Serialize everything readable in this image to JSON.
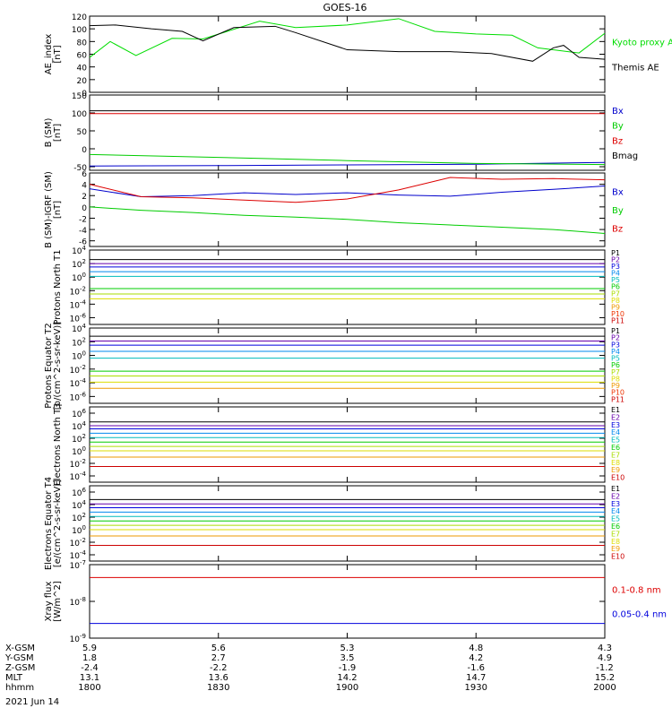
{
  "title": "GOES-16",
  "date_label": "2021 Jun 14",
  "x_axis": {
    "ticks": [
      1800,
      1830,
      1900,
      1930,
      2000
    ],
    "rows": [
      {
        "label": "X-GSM",
        "values": [
          "5.9",
          "5.6",
          "5.3",
          "4.8",
          "4.3"
        ]
      },
      {
        "label": "Y-GSM",
        "values": [
          "1.8",
          "2.7",
          "3.5",
          "4.2",
          "4.9"
        ]
      },
      {
        "label": "Z-GSM",
        "values": [
          "-2.4",
          "-2.2",
          "-1.9",
          "-1.6",
          "-1.2"
        ]
      },
      {
        "label": "MLT",
        "values": [
          "13.1",
          "13.6",
          "14.2",
          "14.7",
          "15.2"
        ]
      },
      {
        "label": "hhmm",
        "values": [
          "1800",
          "1830",
          "1900",
          "1930",
          "2000"
        ]
      }
    ]
  },
  "chart_data": [
    {
      "type": "line",
      "ylabel": "AE_index [nT]",
      "ylim": [
        0,
        120
      ],
      "yticks": [
        "120",
        "100",
        "80",
        "60",
        "40",
        "20",
        "0"
      ],
      "series": [
        {
          "name": "Kyoto proxy AE",
          "color": "#00dd00",
          "x": [
            0,
            4,
            9,
            16,
            22,
            33,
            40,
            50,
            60,
            67,
            75,
            82,
            87,
            95,
            100
          ],
          "y": [
            55,
            80,
            58,
            85,
            84,
            112,
            102,
            106,
            116,
            96,
            92,
            90,
            70,
            62,
            93
          ]
        },
        {
          "name": "Themis AE",
          "color": "#000000",
          "x": [
            0,
            5,
            12,
            18,
            22,
            28,
            36,
            40,
            50,
            60,
            70,
            78,
            86,
            90,
            92,
            95,
            100
          ],
          "y": [
            105,
            106,
            100,
            96,
            81,
            102,
            104,
            94,
            67,
            64,
            64,
            61,
            49,
            70,
            74,
            55,
            52
          ]
        }
      ],
      "legend": [
        "Kyoto proxy AE",
        "Themis AE"
      ]
    },
    {
      "type": "line",
      "ylabel": "B (SM) [nT]",
      "ylim": [
        -60,
        150
      ],
      "yticks": [
        "150",
        "100",
        "50",
        "0",
        "-50"
      ],
      "series": [
        {
          "name": "Bx",
          "color": "#0000cc",
          "x": [
            0,
            25,
            50,
            75,
            100
          ],
          "y": [
            -48,
            -47,
            -45,
            -43,
            -38
          ]
        },
        {
          "name": "By",
          "color": "#00cc00",
          "x": [
            0,
            25,
            50,
            75,
            100
          ],
          "y": [
            -16,
            -24,
            -33,
            -41,
            -44
          ]
        },
        {
          "name": "Bz",
          "color": "#dd0000",
          "x": [
            0,
            50,
            100
          ],
          "y": [
            98,
            98,
            98
          ]
        },
        {
          "name": "Bmag",
          "color": "#000000",
          "x": [
            0,
            50,
            100
          ],
          "y": [
            106,
            106,
            106
          ]
        }
      ],
      "legend": [
        "Bx",
        "By",
        "Bz",
        "Bmag"
      ]
    },
    {
      "type": "line",
      "ylabel": "B (SM)-IGRF (SM) [nT]",
      "ylim": [
        -7,
        6
      ],
      "yticks": [
        "6",
        "4",
        "2",
        "0",
        "-2",
        "-4",
        "-6"
      ],
      "series": [
        {
          "name": "Bx",
          "color": "#0000cc",
          "x": [
            0,
            10,
            20,
            30,
            40,
            50,
            60,
            70,
            80,
            90,
            100
          ],
          "y": [
            3.2,
            1.8,
            2.0,
            2.5,
            2.2,
            2.5,
            2.1,
            1.9,
            2.6,
            3.1,
            3.7
          ]
        },
        {
          "name": "By",
          "color": "#00cc00",
          "x": [
            0,
            10,
            20,
            30,
            40,
            50,
            60,
            70,
            80,
            90,
            100
          ],
          "y": [
            0,
            -0.6,
            -1.0,
            -1.5,
            -1.8,
            -2.2,
            -2.8,
            -3.2,
            -3.6,
            -4.0,
            -4.7
          ]
        },
        {
          "name": "Bz",
          "color": "#dd0000",
          "x": [
            0,
            10,
            20,
            30,
            40,
            50,
            60,
            70,
            80,
            90,
            100
          ],
          "y": [
            4.0,
            1.8,
            1.6,
            1.2,
            0.8,
            1.4,
            3.0,
            5.2,
            4.9,
            5.0,
            4.8
          ]
        }
      ],
      "legend": [
        "Bx",
        "By",
        "Bz"
      ]
    },
    {
      "type": "line",
      "ylabel": "Protons North T1",
      "scale": "log",
      "yticks": [
        "10^4",
        "10^2",
        "10^0",
        "10^-2",
        "10^-4",
        "10^-6"
      ],
      "ylim_exp": [
        -7,
        4
      ],
      "series": [
        {
          "name": "P1",
          "color": "#000000",
          "level": 2.6
        },
        {
          "name": "P2",
          "color": "#6600aa",
          "level": 2.0
        },
        {
          "name": "P3",
          "color": "#0000dd",
          "level": 1.5
        },
        {
          "name": "P4",
          "color": "#0088ee",
          "level": 0.8
        },
        {
          "name": "P5",
          "color": "#00bbbb",
          "level": 0.1
        },
        {
          "name": "P6",
          "color": "#00cc00",
          "level": -1.7
        },
        {
          "name": "P7",
          "color": "#aadd00",
          "level": -2.5
        },
        {
          "name": "P8",
          "color": "#dddd00",
          "level": -3.2
        },
        {
          "name": "P9",
          "color": "#ee9900",
          "level": -99
        },
        {
          "name": "P10",
          "color": "#ee3300",
          "level": -99
        },
        {
          "name": "P11",
          "color": "#cc0000",
          "level": -99
        }
      ]
    },
    {
      "type": "line",
      "ylabel": "Protons Equator T2 [p/(cm^2-s-sr-keV)]",
      "scale": "log",
      "yticks": [
        "10^4",
        "10^2",
        "10^0",
        "10^-2",
        "10^-4",
        "10^-6"
      ],
      "ylim_exp": [
        -7,
        4
      ],
      "series": [
        {
          "name": "P1",
          "color": "#000000",
          "level": 2.8
        },
        {
          "name": "P2",
          "color": "#6600aa",
          "level": 2.1
        },
        {
          "name": "P3",
          "color": "#0000dd",
          "level": 1.5
        },
        {
          "name": "P4",
          "color": "#0088ee",
          "level": 0.6
        },
        {
          "name": "P5",
          "color": "#00bbbb",
          "level": -0.4
        },
        {
          "name": "P6",
          "color": "#00cc00",
          "level": -2.3
        },
        {
          "name": "P7",
          "color": "#aadd00",
          "level": -3.0
        },
        {
          "name": "P8",
          "color": "#dddd00",
          "level": -3.9
        },
        {
          "name": "P9",
          "color": "#ee9900",
          "level": -4.8
        },
        {
          "name": "P10",
          "color": "#ee3300",
          "level": -99
        },
        {
          "name": "P11",
          "color": "#cc0000",
          "level": -99
        }
      ]
    },
    {
      "type": "line",
      "ylabel": "Electrons North T3",
      "scale": "log",
      "yticks": [
        "10^6",
        "10^4",
        "10^2",
        "10^0",
        "10^-2",
        "10^-4"
      ],
      "ylim_exp": [
        -5,
        7
      ],
      "series": [
        {
          "name": "E1",
          "color": "#000000",
          "level": 4.6
        },
        {
          "name": "E2",
          "color": "#6600aa",
          "level": 4.0
        },
        {
          "name": "E3",
          "color": "#0000dd",
          "level": 3.5
        },
        {
          "name": "E4",
          "color": "#0088ee",
          "level": 2.8
        },
        {
          "name": "E5",
          "color": "#00bbbb",
          "level": 2.1
        },
        {
          "name": "E6",
          "color": "#00cc00",
          "level": 1.4
        },
        {
          "name": "E7",
          "color": "#aadd00",
          "level": 0.7
        },
        {
          "name": "E8",
          "color": "#dddd00",
          "level": 0.0
        },
        {
          "name": "E9",
          "color": "#ee9900",
          "level": -1.0
        },
        {
          "name": "E10",
          "color": "#cc0000",
          "level": -2.5
        }
      ]
    },
    {
      "type": "line",
      "ylabel": "Electrons Equator T4 [e/(cm^2-s-sr-keV)]",
      "scale": "log",
      "yticks": [
        "10^6",
        "10^4",
        "10^2",
        "10^0",
        "10^-2",
        "10^-4"
      ],
      "ylim_exp": [
        -5,
        7
      ],
      "series": [
        {
          "name": "E1",
          "color": "#000000",
          "level": 4.8
        },
        {
          "name": "E2",
          "color": "#6600aa",
          "level": 4.1
        },
        {
          "name": "E3",
          "color": "#0000dd",
          "level": 3.5
        },
        {
          "name": "E4",
          "color": "#0088ee",
          "level": 2.8
        },
        {
          "name": "E5",
          "color": "#00bbbb",
          "level": 2.1
        },
        {
          "name": "E6",
          "color": "#00cc00",
          "level": 1.4
        },
        {
          "name": "E7",
          "color": "#aadd00",
          "level": 0.7
        },
        {
          "name": "E8",
          "color": "#dddd00",
          "level": 0.0
        },
        {
          "name": "E9",
          "color": "#ee9900",
          "level": -1.0
        },
        {
          "name": "E10",
          "color": "#cc0000",
          "level": -2.5
        }
      ]
    },
    {
      "type": "line",
      "ylabel": "Xray flux [W/m^2]",
      "scale": "log",
      "yticks": [
        "10^-7",
        "10^-8",
        "10^-9"
      ],
      "ylim_exp": [
        -9,
        -7
      ],
      "series": [
        {
          "name": "0.1-0.8 nm",
          "color": "#dd0000",
          "level": -7.35
        },
        {
          "name": "0.05-0.4 nm",
          "color": "#0000dd",
          "level": -8.6
        }
      ],
      "legend": [
        "0.1-0.8 nm",
        "0.05-0.4 nm"
      ]
    }
  ]
}
